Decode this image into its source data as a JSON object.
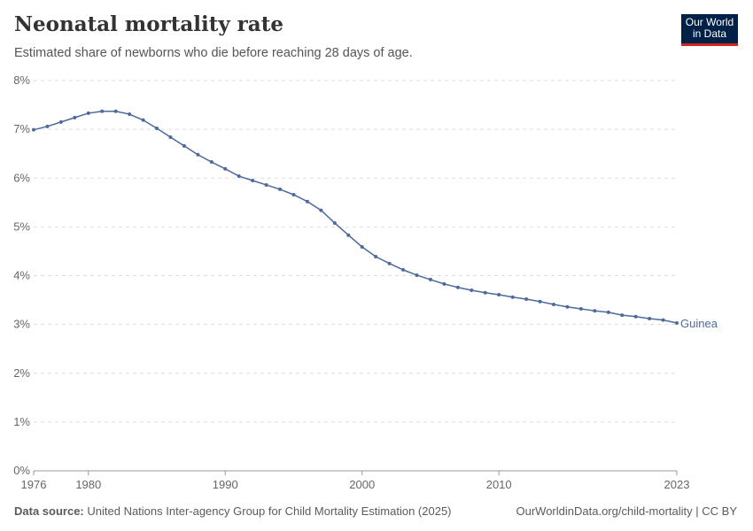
{
  "header": {
    "title": "Neonatal mortality rate",
    "subtitle": "Estimated share of newborns who die before reaching 28 days of age.",
    "logo_text": "Our World in Data"
  },
  "footer": {
    "source_label": "Data source:",
    "source": "United Nations Inter-agency Group for Child Mortality Estimation (2025)",
    "link": "OurWorldinData.org/child-mortality | CC BY"
  },
  "chart_data": {
    "type": "line",
    "title": "Neonatal mortality rate",
    "subtitle": "Estimated share of newborns who die before reaching 28 days of age.",
    "xlim": [
      1976,
      2023
    ],
    "ylim": [
      0,
      8
    ],
    "x_ticks": [
      "1976",
      "1980",
      "1990",
      "2000",
      "2010",
      "2023"
    ],
    "y_ticks": [
      "0%",
      "1%",
      "2%",
      "3%",
      "4%",
      "5%",
      "6%",
      "7%",
      "8%"
    ],
    "grid": "horizontal dashed",
    "color": "#4C6A9C",
    "series": [
      {
        "name": "Guinea",
        "x": [
          1976,
          1977,
          1978,
          1979,
          1980,
          1981,
          1982,
          1983,
          1984,
          1985,
          1986,
          1987,
          1988,
          1989,
          1990,
          1991,
          1992,
          1993,
          1994,
          1995,
          1996,
          1997,
          1998,
          1999,
          2000,
          2001,
          2002,
          2003,
          2004,
          2005,
          2006,
          2007,
          2008,
          2009,
          2010,
          2011,
          2012,
          2013,
          2014,
          2015,
          2016,
          2017,
          2018,
          2019,
          2020,
          2021,
          2022,
          2023
        ],
        "values": [
          6.99,
          7.06,
          7.15,
          7.24,
          7.33,
          7.37,
          7.37,
          7.31,
          7.19,
          7.02,
          6.84,
          6.66,
          6.48,
          6.33,
          6.19,
          6.04,
          5.95,
          5.86,
          5.77,
          5.66,
          5.52,
          5.34,
          5.08,
          4.83,
          4.59,
          4.39,
          4.25,
          4.12,
          4.01,
          3.92,
          3.83,
          3.76,
          3.7,
          3.65,
          3.61,
          3.56,
          3.52,
          3.47,
          3.41,
          3.36,
          3.32,
          3.28,
          3.25,
          3.19,
          3.16,
          3.12,
          3.09,
          3.03
        ]
      }
    ]
  }
}
